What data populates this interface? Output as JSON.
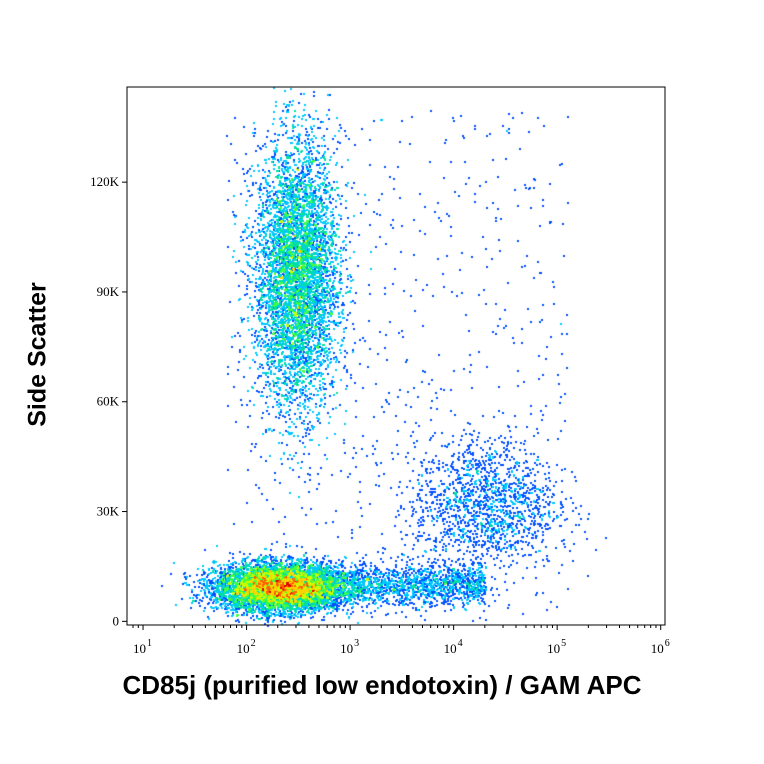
{
  "chart_data": {
    "type": "scatter",
    "style": "flow cytometry density dot plot",
    "xlabel": "CD85j (purified low endotoxin) / GAM APC",
    "ylabel": "Side Scatter",
    "x_scale": "log",
    "xlim": [
      7,
      1100000
    ],
    "ylim": [
      -1000,
      146000
    ],
    "x_ticks": [
      {
        "value": 10,
        "base": "10",
        "exp": "1"
      },
      {
        "value": 100,
        "base": "10",
        "exp": "2"
      },
      {
        "value": 1000,
        "base": "10",
        "exp": "3"
      },
      {
        "value": 10000,
        "base": "10",
        "exp": "4"
      },
      {
        "value": 100000,
        "base": "10",
        "exp": "5"
      },
      {
        "value": 1000000,
        "base": "10",
        "exp": "6"
      }
    ],
    "y_ticks": [
      {
        "value": 0,
        "label": "0"
      },
      {
        "value": 30000,
        "label": "30K"
      },
      {
        "value": 60000,
        "label": "60K"
      },
      {
        "value": 90000,
        "label": "90K"
      },
      {
        "value": 120000,
        "label": "120K"
      }
    ],
    "populations": [
      {
        "center_x": 200,
        "center_y": 9500,
        "count": 9000,
        "peak_density": "high"
      },
      {
        "center_x": 300,
        "center_y": 95000,
        "count": 8000,
        "peak_density": "medium"
      },
      {
        "center_x": 20000,
        "center_y": 32000,
        "count": 1500,
        "peak_density": "low"
      },
      {
        "center_x": 2500,
        "center_y": 10000,
        "count": 2000,
        "peak_density": "low"
      }
    ],
    "density_colors": [
      "#0000c8",
      "#0050ff",
      "#00c8ff",
      "#00e0a0",
      "#40ff40",
      "#c8ff00",
      "#ffd000",
      "#ff6000",
      "#e00000"
    ],
    "grid": false,
    "legend": "none"
  }
}
